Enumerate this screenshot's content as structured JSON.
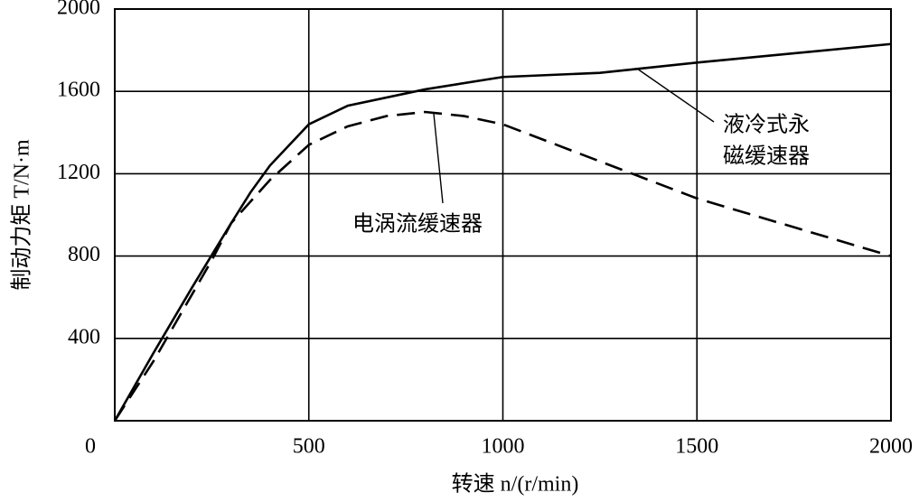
{
  "chart_data": {
    "type": "line",
    "xlabel": "转速 n/(r/min)",
    "ylabel": "制动力矩 T/N·m",
    "xlim": [
      0,
      2000
    ],
    "ylim": [
      0,
      2000
    ],
    "xticks": [
      0,
      500,
      1000,
      1500,
      2000
    ],
    "yticks": [
      400,
      800,
      1200,
      1600,
      2000
    ],
    "grid": true,
    "series": [
      {
        "color": "#000000",
        "dash": "solid",
        "x": [
          0,
          100,
          200,
          300,
          350,
          400,
          500,
          600,
          800,
          1000,
          1250,
          1500,
          2000
        ],
        "values": [
          0,
          330,
          650,
          960,
          1110,
          1240,
          1440,
          1530,
          1610,
          1670,
          1690,
          1740,
          1830
        ]
      },
      {
        "color": "#000000",
        "dash": "dashed",
        "x": [
          0,
          100,
          250,
          300,
          400,
          500,
          600,
          700,
          800,
          900,
          1000,
          1250,
          1500,
          1750,
          2000
        ],
        "values": [
          0,
          290,
          780,
          960,
          1170,
          1340,
          1430,
          1480,
          1500,
          1480,
          1440,
          1260,
          1080,
          940,
          800
        ]
      }
    ],
    "annotations": [
      {
        "lines": [
          "液冷式永",
          "磁缓速器"
        ]
      },
      {
        "lines": [
          "电涡流缓速器"
        ]
      }
    ]
  }
}
